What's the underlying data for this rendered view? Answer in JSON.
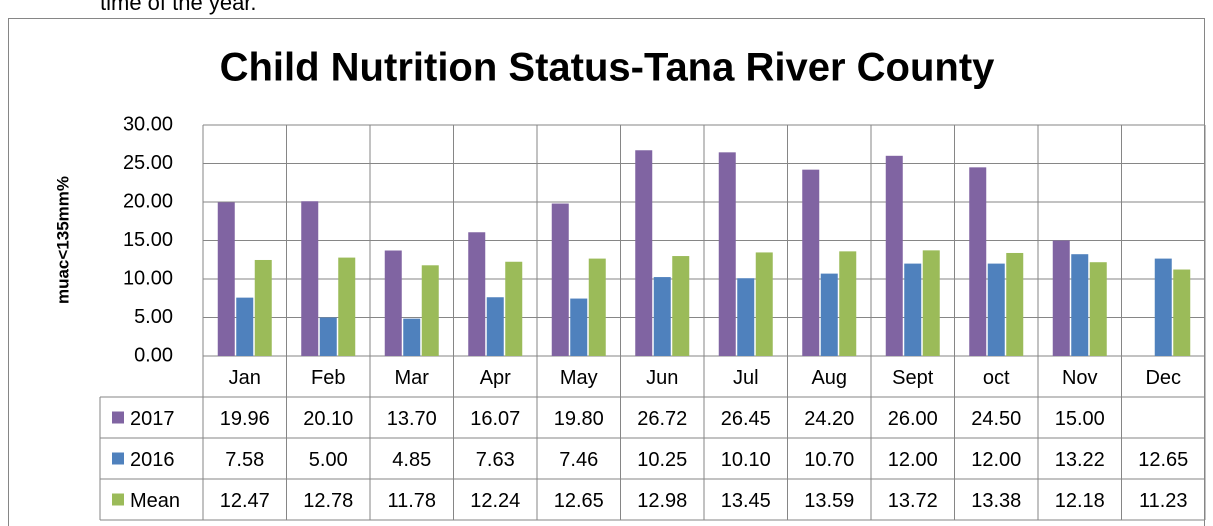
{
  "intro_text": "time of the year.",
  "chart_data": {
    "type": "bar",
    "title": "Child Nutrition Status-Tana River County",
    "y_label": "muac<135mm%",
    "categories": [
      "Jan",
      "Feb",
      "Mar",
      "Apr",
      "May",
      "Jun",
      "Jul",
      "Aug",
      "Sept",
      "oct",
      "Nov",
      "Dec"
    ],
    "series": [
      {
        "name": "2017",
        "color": "#8064a2",
        "values": [
          19.96,
          20.1,
          13.7,
          16.07,
          19.8,
          26.72,
          26.45,
          24.2,
          26.0,
          24.5,
          15.0,
          null
        ],
        "value_labels": [
          "19.96",
          "20.10",
          "13.70",
          "16.07",
          "19.80",
          "26.72",
          "26.45",
          "24.20",
          "26.00",
          "24.50",
          "15.00",
          null
        ]
      },
      {
        "name": "2016",
        "color": "#4f81bd",
        "values": [
          7.58,
          5.0,
          4.85,
          7.63,
          7.46,
          10.25,
          10.1,
          10.7,
          12.0,
          12.0,
          13.22,
          12.65
        ],
        "value_labels": [
          "7.58",
          "5.00",
          "4.85",
          "7.63",
          "7.46",
          "10.25",
          "10.10",
          "10.70",
          "12.00",
          "12.00",
          "13.22",
          "12.65"
        ]
      },
      {
        "name": "Mean",
        "color": "#9bbb59",
        "values": [
          12.47,
          12.78,
          11.78,
          12.24,
          12.65,
          12.98,
          13.45,
          13.59,
          13.72,
          13.38,
          12.18,
          11.23
        ],
        "value_labels": [
          "12.47",
          "12.78",
          "11.78",
          "12.24",
          "12.65",
          "12.98",
          "13.45",
          "13.59",
          "13.72",
          "13.38",
          "12.18",
          "11.23"
        ]
      }
    ],
    "ylim": [
      0,
      30
    ],
    "yticks": [
      {
        "value": 0,
        "label": "0.00"
      },
      {
        "value": 5,
        "label": "5.00"
      },
      {
        "value": 10,
        "label": "10.00"
      },
      {
        "value": 15,
        "label": "15.00"
      },
      {
        "value": 20,
        "label": "20.00"
      },
      {
        "value": 25,
        "label": "25.00"
      },
      {
        "value": 30,
        "label": "30.00"
      }
    ],
    "grid": true
  }
}
